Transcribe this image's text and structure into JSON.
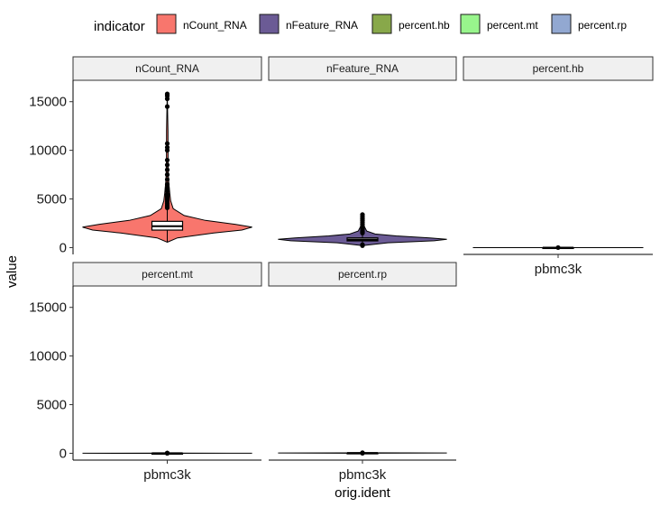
{
  "chart_data": {
    "type": "violin",
    "facet_wrap": true,
    "xlabel": "orig.ident",
    "ylabel": "value",
    "ylim": [
      -700,
      17200
    ],
    "yticks": [
      0,
      5000,
      10000,
      15000
    ],
    "categories": [
      "pbmc3k"
    ],
    "legend": {
      "title": "indicator",
      "position": "top",
      "entries": [
        {
          "label": "nCount_RNA",
          "color": "#F8766D"
        },
        {
          "label": "nFeature_RNA",
          "color": "#6B5B95"
        },
        {
          "label": "percent.hb",
          "color": "#88A84A"
        },
        {
          "label": "percent.mt",
          "color": "#98F58C"
        },
        {
          "label": "percent.rp",
          "color": "#92A8D1"
        }
      ]
    },
    "panels": [
      {
        "name": "nCount_RNA",
        "color": "#F8766D",
        "violin": [
          [
            548,
            0
          ],
          [
            1000,
            0.12
          ],
          [
            1500,
            0.55
          ],
          [
            1800,
            0.88
          ],
          [
            2100,
            1.0
          ],
          [
            2400,
            0.8
          ],
          [
            2800,
            0.45
          ],
          [
            3300,
            0.2
          ],
          [
            4000,
            0.07
          ],
          [
            4800,
            0.04
          ],
          [
            5600,
            0.03
          ],
          [
            7000,
            0.015
          ],
          [
            9000,
            0.01
          ],
          [
            12000,
            0.008
          ],
          [
            15844,
            0
          ]
        ],
        "box": {
          "q1": 1800,
          "median": 2200,
          "q3": 2700,
          "whisker_low": 548,
          "whisker_high": 4000
        },
        "outliers": [
          4100,
          4300,
          4500,
          4700,
          4900,
          5100,
          5300,
          5500,
          5800,
          6100,
          6500,
          7000,
          7500,
          8000,
          8500,
          9000,
          10000,
          10300,
          10700,
          14500,
          15300,
          15600,
          15800
        ]
      },
      {
        "name": "nFeature_RNA",
        "color": "#6B5B95",
        "violin": [
          [
            212,
            0
          ],
          [
            500,
            0.3
          ],
          [
            700,
            0.85
          ],
          [
            850,
            1.0
          ],
          [
            1000,
            0.8
          ],
          [
            1200,
            0.4
          ],
          [
            1400,
            0.15
          ],
          [
            1700,
            0.05
          ],
          [
            2200,
            0.02
          ],
          [
            2700,
            0.01
          ],
          [
            3400,
            0
          ]
        ],
        "box": {
          "q1": 690,
          "median": 820,
          "q3": 1000,
          "whisker_low": 212,
          "whisker_high": 1400
        },
        "outliers": [
          200,
          300,
          1500,
          1600,
          1700,
          1850,
          2000,
          2200,
          2400,
          2600,
          2800,
          3000,
          3200,
          3400
        ]
      },
      {
        "name": "percent.hb",
        "color": "#88A84A",
        "violin": [
          [
            0,
            0
          ],
          [
            0.01,
            1.0
          ],
          [
            0.02,
            0
          ]
        ],
        "box": {
          "q1": 0,
          "median": 0,
          "q3": 0,
          "whisker_low": 0,
          "whisker_high": 0
        },
        "outliers": [
          0
        ]
      },
      {
        "name": "percent.mt",
        "color": "#98F58C",
        "violin": [
          [
            0,
            0
          ],
          [
            2,
            1.0
          ],
          [
            22,
            0
          ]
        ],
        "box": {
          "q1": 1.5,
          "median": 2,
          "q3": 2.5,
          "whisker_low": 0,
          "whisker_high": 4
        },
        "outliers": [
          5,
          7,
          10,
          15,
          22
        ]
      },
      {
        "name": "percent.rp",
        "color": "#92A8D1",
        "violin": [
          [
            5,
            0
          ],
          [
            30,
            1.0
          ],
          [
            55,
            0
          ]
        ],
        "box": {
          "q1": 25,
          "median": 30,
          "q3": 35,
          "whisker_low": 15,
          "whisker_high": 50
        },
        "outliers": [
          5,
          55
        ]
      }
    ]
  }
}
